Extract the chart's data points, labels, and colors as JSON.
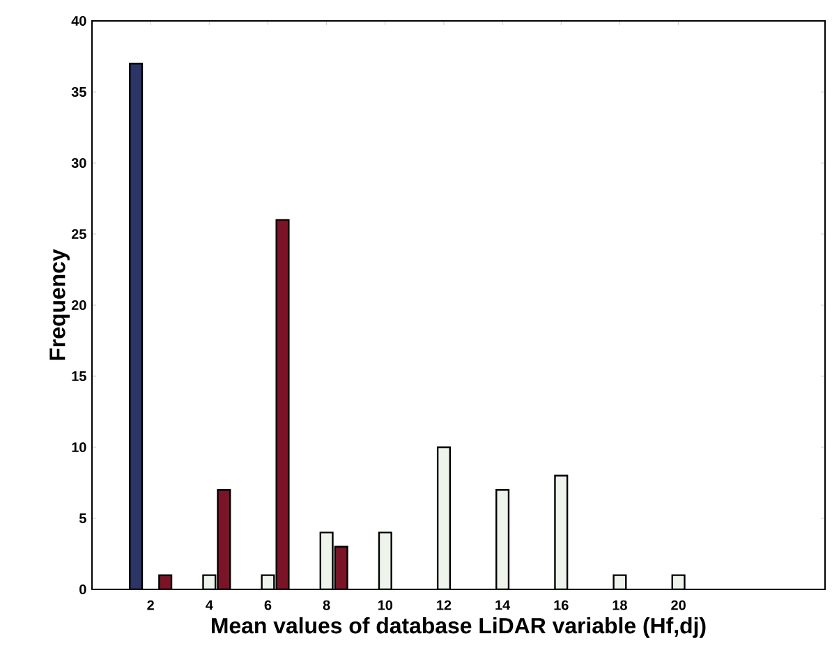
{
  "chart_data": {
    "type": "bar",
    "xlabel": "Mean values of database LiDAR variable (Hf,dj)",
    "ylabel": "Frequency",
    "x": [
      2,
      4,
      6,
      8,
      10,
      12,
      14,
      16,
      18,
      20
    ],
    "series": [
      {
        "color": "#2b3566",
        "values": [
          37,
          null,
          null,
          null,
          null,
          null,
          null,
          null,
          null,
          null
        ]
      },
      {
        "color": "#eef4ec",
        "values": [
          null,
          1,
          1,
          4,
          4,
          10,
          7,
          8,
          1,
          1
        ]
      },
      {
        "color": "#7a1426",
        "values": [
          1,
          7,
          26,
          3,
          null,
          null,
          null,
          null,
          null,
          null
        ]
      }
    ],
    "xlim": [
      0,
      25
    ],
    "ylim": [
      0,
      40
    ],
    "xticks": [
      2,
      4,
      6,
      8,
      10,
      12,
      14,
      16,
      18,
      20
    ],
    "yticks": [
      0,
      5,
      10,
      15,
      20,
      25,
      30,
      35,
      40
    ],
    "grid": false
  }
}
